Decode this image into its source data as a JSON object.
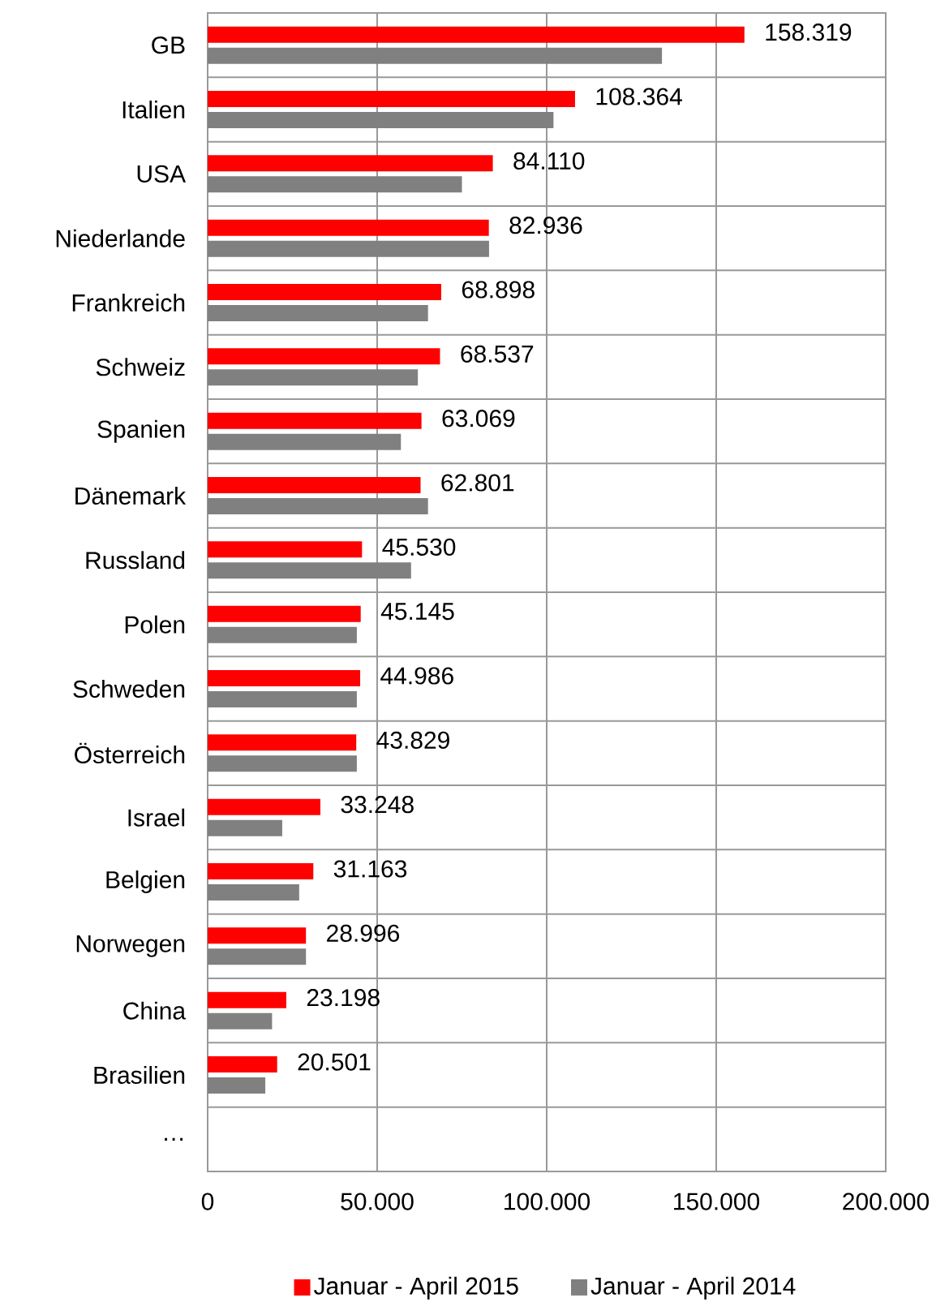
{
  "chart_data": {
    "type": "bar",
    "orientation": "horizontal",
    "categories": [
      "GB",
      "Italien",
      "USA",
      "Niederlande",
      "Frankreich",
      "Schweiz",
      "Spanien",
      "Dänemark",
      "Russland",
      "Polen",
      "Schweden",
      "Österreich",
      "Israel",
      "Belgien",
      "Norwegen",
      "China",
      "Brasilien",
      "…"
    ],
    "series": [
      {
        "name": "Januar - April 2015",
        "color": "#ff0000",
        "values": [
          158319,
          108364,
          84110,
          82936,
          68898,
          68537,
          63069,
          62801,
          45530,
          45145,
          44986,
          43829,
          33248,
          31163,
          28996,
          23198,
          20501,
          null
        ],
        "value_labels": [
          "158.319",
          "108.364",
          "84.110",
          "82.936",
          "68.898",
          "68.537",
          "63.069",
          "62.801",
          "45.530",
          "45.145",
          "44.986",
          "43.829",
          "33.248",
          "31.163",
          "28.996",
          "23.198",
          "20.501",
          null
        ]
      },
      {
        "name": "Januar - April 2014",
        "color": "#808080",
        "values": [
          134000,
          102000,
          75000,
          83000,
          65000,
          62000,
          57000,
          65000,
          60000,
          44000,
          44000,
          44000,
          22000,
          27000,
          29000,
          19000,
          17000,
          null
        ]
      }
    ],
    "xlim": [
      0,
      200000
    ],
    "xticks": [
      0,
      {
        "value": 50000,
        "label": "50.000"
      },
      {
        "value": 100000,
        "label": "100.000"
      },
      {
        "value": 150000,
        "label": "150.000"
      },
      {
        "value": 200000,
        "label": "200.000"
      }
    ],
    "grid": true,
    "legend": "bottom"
  }
}
